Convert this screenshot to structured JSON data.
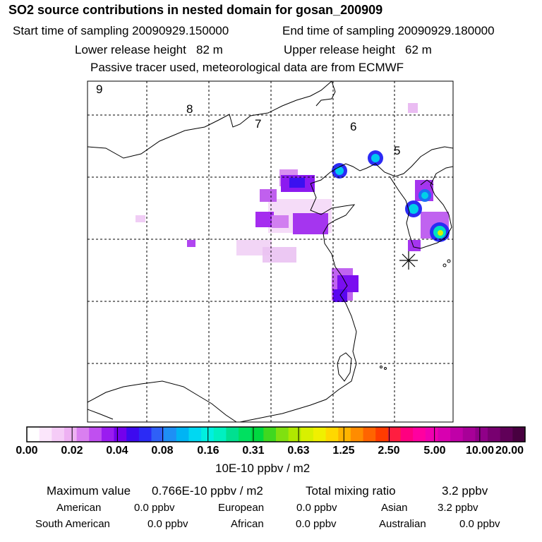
{
  "header": {
    "title": "SO2 source contributions in nested domain for gosan_200909",
    "start_sampling": "Start time of sampling 20090929.150000",
    "end_sampling": "End time of sampling 20090929.180000",
    "lower_release": "Lower release height   82 m",
    "upper_release": "Upper release height   62 m",
    "tracer_note": "Passive tracer used, meteorological data are from ECMWF"
  },
  "map": {
    "day_labels": [
      "9",
      "8",
      "7",
      "6",
      "5"
    ],
    "marker": "receptor-star"
  },
  "colorbar": {
    "tick_labels": [
      "0.00",
      "0.02",
      "0.04",
      "0.08",
      "0.16",
      "0.31",
      "0.63",
      "1.25",
      "2.50",
      "5.00",
      "10.00",
      "20.00"
    ],
    "unit": "10E-10 ppbv / m2",
    "colors": [
      "#ffffff",
      "#fbe6fb",
      "#f5ccf7",
      "#eeb1f3",
      "#d97ff0",
      "#c04ff0",
      "#9a1cf0",
      "#7400ec",
      "#3d0aef",
      "#2b2bf5",
      "#2f60f7",
      "#1e8ff5",
      "#00b4f4",
      "#00d8f2",
      "#00f0e0",
      "#00f0c0",
      "#00e090",
      "#00e060",
      "#00d840",
      "#40d820",
      "#80e010",
      "#b0e800",
      "#d8f000",
      "#f0f000",
      "#ffd800",
      "#ffb400",
      "#ff8c00",
      "#ff6400",
      "#ff3c00",
      "#ff1e40",
      "#ff0080",
      "#ff00a0",
      "#f000b0",
      "#d800b0",
      "#c000a8",
      "#a80098",
      "#900088",
      "#780070",
      "#600058",
      "#480040"
    ]
  },
  "stats": {
    "max_label": "Maximum value",
    "max_value": "0.766E-10 ppbv / m2",
    "total_label": "Total mixing ratio",
    "total_value": "3.2 ppbv",
    "regions": [
      {
        "name": "American",
        "value": "0.0 ppbv"
      },
      {
        "name": "European",
        "value": "0.0 ppbv"
      },
      {
        "name": "Asian",
        "value": "3.2 ppbv"
      },
      {
        "name": "South American",
        "value": "0.0 ppbv"
      },
      {
        "name": "African",
        "value": "0.0 ppbv"
      },
      {
        "name": "Australian",
        "value": "0.0 ppbv"
      }
    ]
  }
}
